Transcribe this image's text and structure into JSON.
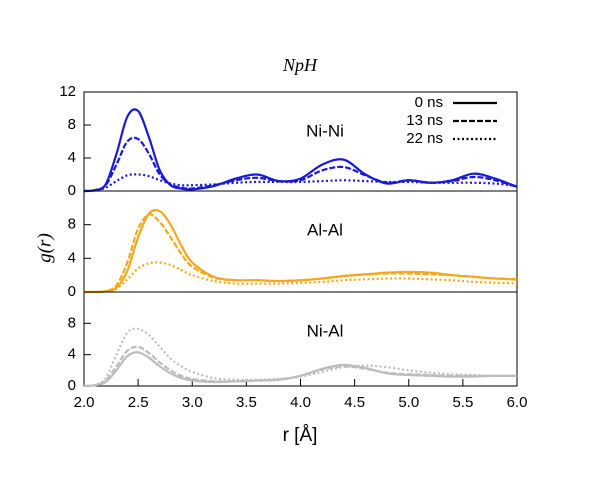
{
  "chart_data": [
    {
      "type": "line",
      "title": "NpH",
      "annotation": "Ni-Ni",
      "legend": "top right",
      "x": [
        2.0,
        2.1,
        2.2,
        2.3,
        2.4,
        2.5,
        2.6,
        2.7,
        2.8,
        2.9,
        3.0,
        3.2,
        3.4,
        3.6,
        3.8,
        4.0,
        4.2,
        4.4,
        4.6,
        4.8,
        5.0,
        5.2,
        5.4,
        5.6,
        5.8,
        6.0
      ],
      "xlim": [
        2.0,
        6.0
      ],
      "ylim": [
        0,
        12
      ],
      "yticks": [
        0,
        4,
        8,
        12
      ],
      "series": [
        {
          "name": "0 ns",
          "color": "#1a1ad6",
          "dash": "solid",
          "values": [
            0,
            0.1,
            0.8,
            4.5,
            9.0,
            9.7,
            6.5,
            2.5,
            0.7,
            0.3,
            0.2,
            0.6,
            1.5,
            2.0,
            1.2,
            1.5,
            3.2,
            3.8,
            2.0,
            0.9,
            1.3,
            1.0,
            1.3,
            2.1,
            1.5,
            0.5
          ]
        },
        {
          "name": "13 ns",
          "color": "#1a1ad6",
          "dash": "dashed",
          "values": [
            0,
            0.1,
            0.7,
            3.2,
            6.0,
            6.3,
            4.5,
            2.0,
            0.8,
            0.4,
            0.3,
            0.7,
            1.3,
            1.6,
            1.2,
            1.3,
            2.5,
            2.9,
            1.9,
            1.0,
            1.3,
            1.0,
            1.2,
            1.7,
            1.3,
            0.5
          ]
        },
        {
          "name": "22 ns",
          "color": "#1a1ad6",
          "dash": "dotted",
          "values": [
            0,
            0.05,
            0.4,
            1.2,
            1.9,
            2.0,
            1.8,
            1.3,
            0.9,
            0.7,
            0.7,
            0.8,
            1.0,
            1.1,
            1.1,
            1.1,
            1.2,
            1.3,
            1.2,
            1.1,
            1.1,
            1.0,
            1.0,
            1.0,
            0.9,
            0.6
          ]
        }
      ]
    },
    {
      "type": "line",
      "ylabel": "g(r)",
      "annotation": "Al-Al",
      "x": [
        2.0,
        2.1,
        2.2,
        2.3,
        2.4,
        2.5,
        2.6,
        2.7,
        2.8,
        2.9,
        3.0,
        3.2,
        3.4,
        3.6,
        3.8,
        4.0,
        4.2,
        4.4,
        4.6,
        4.8,
        5.0,
        5.2,
        5.4,
        5.6,
        5.8,
        6.0
      ],
      "xlim": [
        2.0,
        6.0
      ],
      "ylim": [
        0,
        12
      ],
      "yticks": [
        0,
        4,
        8
      ],
      "series": [
        {
          "color": "#f5a81c",
          "dash": "solid",
          "values": [
            0,
            0,
            0.1,
            0.5,
            2.5,
            6.5,
            9.3,
            9.6,
            8.0,
            5.5,
            3.5,
            1.8,
            1.4,
            1.4,
            1.3,
            1.4,
            1.6,
            1.9,
            2.1,
            2.3,
            2.4,
            2.3,
            2.0,
            1.8,
            1.6,
            1.5
          ]
        },
        {
          "color": "#f5a81c",
          "dash": "dashed",
          "values": [
            0,
            0,
            0.1,
            0.8,
            3.5,
            7.5,
            9.2,
            8.3,
            6.5,
            4.5,
            3.0,
            1.7,
            1.4,
            1.4,
            1.3,
            1.4,
            1.6,
            1.9,
            2.1,
            2.2,
            2.2,
            2.1,
            2.0,
            1.8,
            1.6,
            1.5
          ]
        },
        {
          "color": "#f5a81c",
          "dash": "dotted",
          "values": [
            0,
            0,
            0.05,
            0.4,
            1.5,
            2.8,
            3.4,
            3.5,
            3.2,
            2.6,
            2.0,
            1.3,
            1.0,
            1.0,
            1.0,
            1.1,
            1.2,
            1.4,
            1.5,
            1.6,
            1.6,
            1.5,
            1.4,
            1.2,
            1.1,
            1.0
          ]
        }
      ]
    },
    {
      "type": "line",
      "xlabel": "r [Å]",
      "annotation": "Ni-Al",
      "x": [
        2.0,
        2.1,
        2.2,
        2.3,
        2.4,
        2.5,
        2.6,
        2.7,
        2.8,
        2.9,
        3.0,
        3.2,
        3.4,
        3.6,
        3.8,
        4.0,
        4.2,
        4.4,
        4.6,
        4.8,
        5.0,
        5.2,
        5.4,
        5.6,
        5.8,
        6.0
      ],
      "xlim": [
        2.0,
        6.0
      ],
      "ylim": [
        0,
        12
      ],
      "yticks": [
        0,
        4,
        8
      ],
      "xticks": [
        {
          "value": 2.0,
          "label": "2.0"
        },
        {
          "value": 2.5,
          "label": "2.5"
        },
        {
          "value": 3.0,
          "label": "3.0"
        },
        {
          "value": 3.5,
          "label": "3.5"
        },
        {
          "value": 4.0,
          "label": "4.0"
        },
        {
          "value": 4.5,
          "label": "4.5"
        },
        {
          "value": 5.0,
          "label": "5.0"
        },
        {
          "value": 5.5,
          "label": "5.5"
        },
        {
          "value": 6.0,
          "label": "6.0"
        }
      ],
      "series": [
        {
          "color": "#bdbdbd",
          "dash": "solid",
          "values": [
            0,
            0.1,
            0.5,
            2.0,
            3.8,
            4.3,
            3.6,
            2.5,
            1.6,
            1.0,
            0.7,
            0.5,
            0.6,
            0.7,
            0.8,
            1.3,
            2.2,
            2.7,
            2.3,
            1.6,
            1.4,
            1.3,
            1.2,
            1.2,
            1.3,
            1.3
          ]
        },
        {
          "color": "#bdbdbd",
          "dash": "dashed",
          "values": [
            0,
            0.1,
            0.7,
            2.5,
            4.5,
            5.0,
            4.2,
            3.0,
            2.0,
            1.3,
            0.9,
            0.6,
            0.6,
            0.7,
            0.8,
            1.3,
            2.1,
            2.5,
            2.2,
            1.7,
            1.5,
            1.4,
            1.3,
            1.3,
            1.3,
            1.3
          ]
        },
        {
          "color": "#bdbdbd",
          "dash": "dotted",
          "values": [
            0,
            0.1,
            1.0,
            4.0,
            6.8,
            7.3,
            6.5,
            5.0,
            3.5,
            2.5,
            1.8,
            1.0,
            0.8,
            0.8,
            0.9,
            1.2,
            1.8,
            2.4,
            2.6,
            2.4,
            2.0,
            1.7,
            1.5,
            1.4,
            1.3,
            1.3
          ]
        }
      ]
    }
  ]
}
